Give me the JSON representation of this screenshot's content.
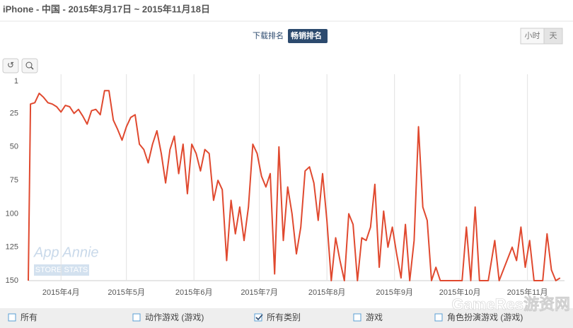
{
  "header": {
    "title": "iPhone - 中国 - 2015年3月17日 ~ 2015年11月18日"
  },
  "rank_tabs": [
    {
      "label": "下载排名",
      "active": false
    },
    {
      "label": "畅销排名",
      "active": true
    }
  ],
  "granularity": [
    {
      "label": "小时",
      "active": false
    },
    {
      "label": "天",
      "active": true
    }
  ],
  "watermark": {
    "brand": "App Annie",
    "sub": "STORE STATS",
    "site": "GameRes游资网"
  },
  "chart_data": {
    "type": "line",
    "y_inverted": true,
    "grid": true,
    "ylim": [
      1,
      150
    ],
    "yticks": [
      1,
      25,
      50,
      75,
      100,
      125,
      150
    ],
    "xlim": [
      "2015-03-17",
      "2015-11-18"
    ],
    "xticks": [
      {
        "value": "2015-04-01",
        "label": "2015年4月"
      },
      {
        "value": "2015-05-01",
        "label": "2015年5月"
      },
      {
        "value": "2015-06-01",
        "label": "2015年6月"
      },
      {
        "value": "2015-07-01",
        "label": "2015年7月"
      },
      {
        "value": "2015-08-01",
        "label": "2015年8月"
      },
      {
        "value": "2015-09-01",
        "label": "2015年9月"
      },
      {
        "value": "2015-10-01",
        "label": "2015年10月"
      },
      {
        "value": "2015-11-01",
        "label": "2015年11月"
      }
    ],
    "x": [
      "2015-03-17",
      "2015-03-18",
      "2015-03-20",
      "2015-03-22",
      "2015-03-24",
      "2015-03-26",
      "2015-03-28",
      "2015-03-30",
      "2015-04-01",
      "2015-04-03",
      "2015-04-05",
      "2015-04-07",
      "2015-04-09",
      "2015-04-11",
      "2015-04-13",
      "2015-04-15",
      "2015-04-17",
      "2015-04-19",
      "2015-04-21",
      "2015-04-23",
      "2015-04-25",
      "2015-04-27",
      "2015-04-29",
      "2015-05-01",
      "2015-05-03",
      "2015-05-05",
      "2015-05-07",
      "2015-05-09",
      "2015-05-11",
      "2015-05-13",
      "2015-05-15",
      "2015-05-17",
      "2015-05-19",
      "2015-05-21",
      "2015-05-23",
      "2015-05-25",
      "2015-05-27",
      "2015-05-29",
      "2015-05-31",
      "2015-06-02",
      "2015-06-04",
      "2015-06-06",
      "2015-06-08",
      "2015-06-10",
      "2015-06-12",
      "2015-06-14",
      "2015-06-16",
      "2015-06-18",
      "2015-06-20",
      "2015-06-22",
      "2015-06-24",
      "2015-06-26",
      "2015-06-28",
      "2015-06-30",
      "2015-07-02",
      "2015-07-04",
      "2015-07-06",
      "2015-07-08",
      "2015-07-10",
      "2015-07-12",
      "2015-07-14",
      "2015-07-16",
      "2015-07-18",
      "2015-07-20",
      "2015-07-22",
      "2015-07-24",
      "2015-07-26",
      "2015-07-28",
      "2015-07-30",
      "2015-08-01",
      "2015-08-03",
      "2015-08-05",
      "2015-08-07",
      "2015-08-09",
      "2015-08-11",
      "2015-08-13",
      "2015-08-15",
      "2015-08-17",
      "2015-08-19",
      "2015-08-21",
      "2015-08-23",
      "2015-08-25",
      "2015-08-27",
      "2015-08-29",
      "2015-08-31",
      "2015-09-02",
      "2015-09-04",
      "2015-09-06",
      "2015-09-08",
      "2015-09-10",
      "2015-09-12",
      "2015-09-14",
      "2015-09-16",
      "2015-09-18",
      "2015-09-20",
      "2015-09-22",
      "2015-09-24",
      "2015-09-26",
      "2015-09-29",
      "2015-10-02",
      "2015-10-04",
      "2015-10-06",
      "2015-10-08",
      "2015-10-10",
      "2015-10-14",
      "2015-10-17",
      "2015-10-19",
      "2015-10-25",
      "2015-10-27",
      "2015-10-29",
      "2015-10-31",
      "2015-11-02",
      "2015-11-04",
      "2015-11-08",
      "2015-11-10",
      "2015-11-12",
      "2015-11-14",
      "2015-11-16"
    ],
    "series": [
      {
        "color": "#e0492f",
        "values": [
          150,
          18,
          17,
          10,
          13,
          17,
          18,
          20,
          24,
          19,
          20,
          25,
          22,
          27,
          33,
          23,
          22,
          26,
          8,
          8,
          30,
          37,
          45,
          35,
          28,
          26,
          48,
          52,
          62,
          48,
          38,
          55,
          77,
          52,
          42,
          70,
          48,
          85,
          48,
          55,
          68,
          52,
          55,
          90,
          75,
          82,
          135,
          90,
          115,
          95,
          120,
          95,
          48,
          55,
          72,
          80,
          70,
          145,
          50,
          120,
          80,
          100,
          130,
          110,
          68,
          65,
          77,
          105,
          70,
          105,
          150,
          118,
          135,
          150,
          100,
          108,
          150,
          118,
          120,
          110,
          78,
          140,
          98,
          125,
          110,
          130,
          148,
          108,
          150,
          120,
          35,
          95,
          105,
          150,
          140,
          150,
          150,
          150,
          150,
          150,
          110,
          150,
          95,
          150,
          150,
          120,
          150,
          125,
          135,
          110,
          140,
          120,
          150,
          150,
          115,
          142,
          150,
          148
        ]
      }
    ]
  },
  "filters": [
    {
      "label": "所有",
      "checked": false
    },
    {
      "label": "动作游戏 (游戏)",
      "checked": false
    },
    {
      "label": "所有类别",
      "checked": true
    },
    {
      "label": "游戏",
      "checked": false
    },
    {
      "label": "角色扮演游戏 (游戏)",
      "checked": false
    }
  ]
}
